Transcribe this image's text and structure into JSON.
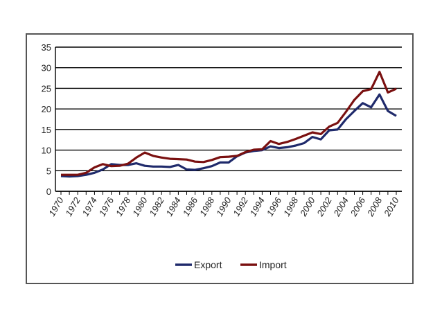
{
  "chart_data": {
    "type": "line",
    "x": [
      1970,
      1971,
      1972,
      1973,
      1974,
      1975,
      1976,
      1977,
      1978,
      1979,
      1980,
      1981,
      1982,
      1983,
      1984,
      1985,
      1986,
      1987,
      1988,
      1989,
      1990,
      1991,
      1992,
      1993,
      1994,
      1995,
      1996,
      1997,
      1998,
      1999,
      2000,
      2001,
      2002,
      2003,
      2004,
      2005,
      2006,
      2007,
      2008,
      2009,
      2010
    ],
    "x_tick_labels": [
      "1970",
      "1972",
      "1974",
      "1976",
      "1978",
      "1980",
      "1982",
      "1984",
      "1986",
      "1988",
      "1990",
      "1992",
      "1994",
      "1996",
      "1998",
      "2000",
      "2002",
      "2004",
      "2006",
      "2008",
      "2010"
    ],
    "ylim": [
      0,
      35
    ],
    "y_ticks": [
      0,
      5,
      10,
      15,
      20,
      25,
      30,
      35
    ],
    "grid": "horizontal",
    "legend_position": "bottom",
    "series": [
      {
        "name": "Export",
        "color": "#1f2a6b",
        "values": [
          3.7,
          3.6,
          3.7,
          4.0,
          4.5,
          5.3,
          6.6,
          6.4,
          6.4,
          6.8,
          6.2,
          6.0,
          6.0,
          5.9,
          6.4,
          5.3,
          5.2,
          5.6,
          6.1,
          7.0,
          7.0,
          8.5,
          9.4,
          9.8,
          10.0,
          10.9,
          10.5,
          10.7,
          11.1,
          11.7,
          13.2,
          12.6,
          14.8,
          15.0,
          17.5,
          19.5,
          21.4,
          20.4,
          23.5,
          19.5,
          18.3
        ]
      },
      {
        "name": "Import",
        "color": "#7a1010",
        "values": [
          4.0,
          4.0,
          4.0,
          4.5,
          5.8,
          6.6,
          6.1,
          6.2,
          6.7,
          8.2,
          9.4,
          8.6,
          8.2,
          7.9,
          7.8,
          7.7,
          7.2,
          7.1,
          7.6,
          8.3,
          8.4,
          8.6,
          9.5,
          10.1,
          10.2,
          12.2,
          11.5,
          12.0,
          12.7,
          13.5,
          14.3,
          13.9,
          15.7,
          16.6,
          19.3,
          22.2,
          24.3,
          24.8,
          29.0,
          24.0,
          24.9
        ]
      }
    ]
  }
}
